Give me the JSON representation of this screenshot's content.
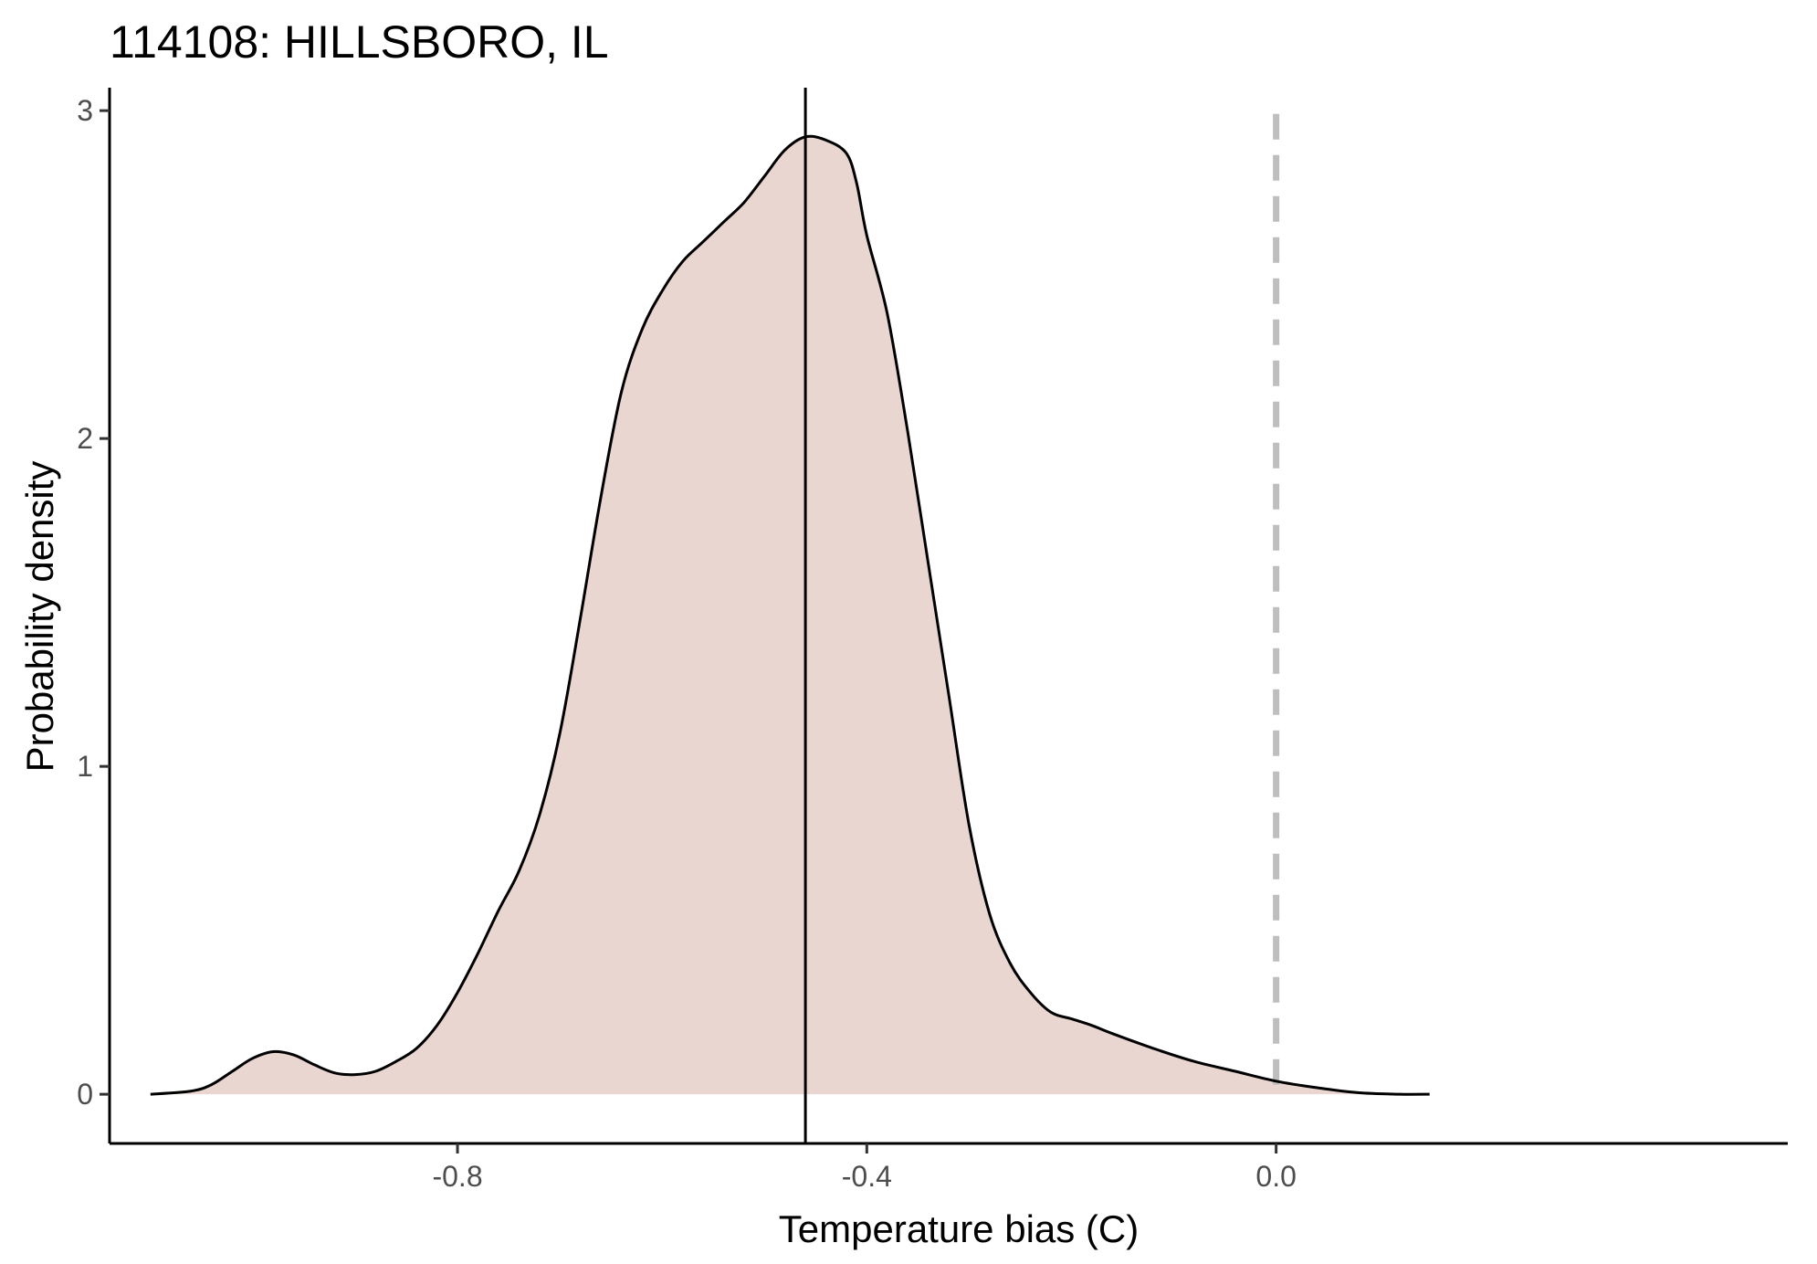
{
  "chart_data": {
    "type": "area",
    "title": "114108: HILLSBORO, IL",
    "xlabel": "Temperature bias (C)",
    "ylabel": "Probability density",
    "xlim": [
      -1.14,
      0.5
    ],
    "ylim": [
      -0.15,
      3.07
    ],
    "x_ticks": [
      -0.8,
      -0.4,
      0.0
    ],
    "x_tick_labels": [
      "-0.8",
      "-0.4",
      "0.0"
    ],
    "y_ticks": [
      0,
      1,
      2,
      3
    ],
    "y_tick_labels": [
      "0",
      "1",
      "2",
      "3"
    ],
    "grid": false,
    "legend": "none",
    "fill_color": "#e9d6d1",
    "line_color": "#000000",
    "density": {
      "x": [
        -1.1,
        -1.06,
        -1.04,
        -1.02,
        -1.0,
        -0.98,
        -0.96,
        -0.94,
        -0.92,
        -0.9,
        -0.88,
        -0.86,
        -0.84,
        -0.82,
        -0.8,
        -0.78,
        -0.76,
        -0.74,
        -0.72,
        -0.7,
        -0.68,
        -0.66,
        -0.64,
        -0.62,
        -0.6,
        -0.58,
        -0.56,
        -0.54,
        -0.52,
        -0.5,
        -0.48,
        -0.46,
        -0.44,
        -0.42,
        -0.41,
        -0.4,
        -0.38,
        -0.36,
        -0.34,
        -0.32,
        -0.3,
        -0.28,
        -0.26,
        -0.24,
        -0.22,
        -0.2,
        -0.18,
        -0.16,
        -0.12,
        -0.08,
        -0.04,
        0.0,
        0.04,
        0.08,
        0.12,
        0.15
      ],
      "y": [
        0.0,
        0.01,
        0.03,
        0.07,
        0.11,
        0.13,
        0.12,
        0.09,
        0.065,
        0.06,
        0.07,
        0.1,
        0.14,
        0.21,
        0.31,
        0.43,
        0.56,
        0.68,
        0.85,
        1.1,
        1.45,
        1.82,
        2.14,
        2.33,
        2.45,
        2.54,
        2.6,
        2.66,
        2.72,
        2.8,
        2.88,
        2.92,
        2.91,
        2.87,
        2.78,
        2.62,
        2.38,
        2.02,
        1.62,
        1.22,
        0.82,
        0.55,
        0.4,
        0.31,
        0.25,
        0.23,
        0.21,
        0.185,
        0.14,
        0.1,
        0.07,
        0.04,
        0.02,
        0.005,
        0.0,
        0.0
      ]
    },
    "reference_lines": [
      {
        "x": -0.46,
        "style": "solid",
        "color": "#000000"
      },
      {
        "x": 0.0,
        "style": "dashed",
        "color": "#bebebe"
      }
    ]
  }
}
